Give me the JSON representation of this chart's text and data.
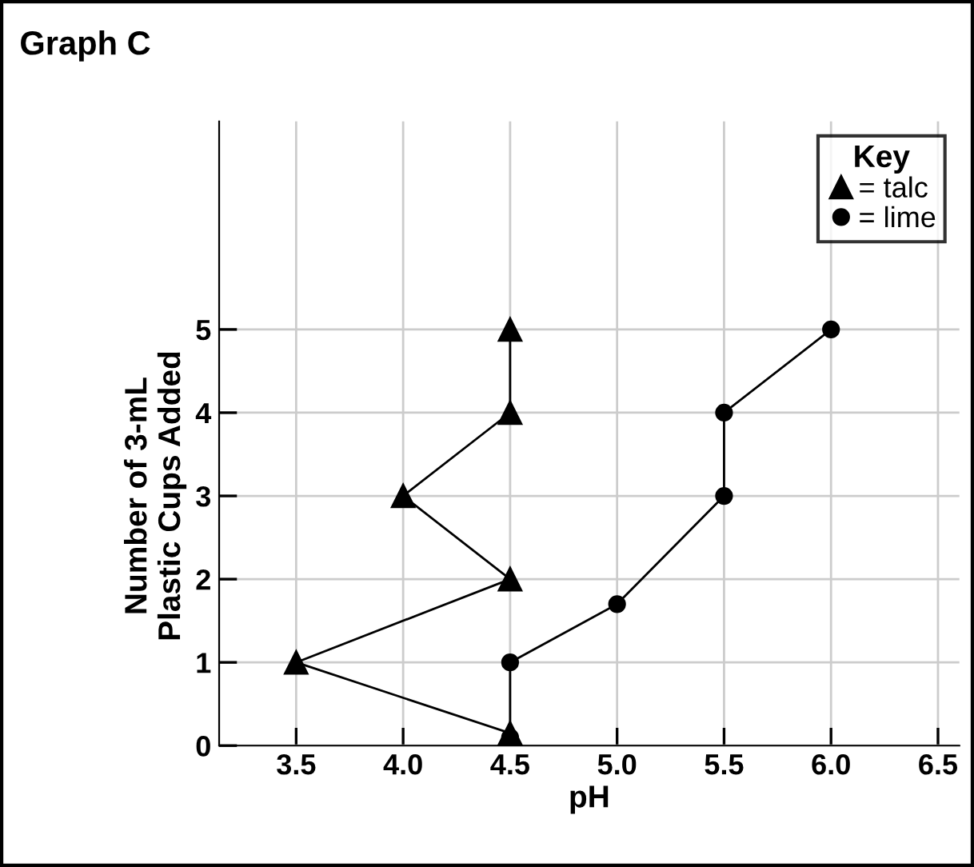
{
  "chart_data": {
    "type": "line",
    "title": "Graph C",
    "xlabel": "pH",
    "ylabel": "Number of 3-mL\nPlastic Cups Added",
    "legend_title": "Key",
    "series": [
      {
        "name": "= talc",
        "color": "#000000",
        "marker": "triangle",
        "x": [
          4.5,
          3.5,
          4.5,
          4.0,
          4.5,
          4.5
        ],
        "values": [
          0.15,
          1.0,
          2.0,
          3.0,
          4.0,
          5.0
        ]
      },
      {
        "name": "= lime",
        "color": "#000000",
        "marker": "circle",
        "x": [
          4.5,
          4.5,
          5.0,
          5.5,
          5.5,
          6.0
        ],
        "values": [
          0.1,
          1.0,
          1.7,
          3.0,
          4.0,
          5.0
        ]
      }
    ],
    "xlim": [
      3.14,
      6.6
    ],
    "ylim": [
      0,
      7.5
    ],
    "xticks": [
      3.5,
      {
        "value": 4,
        "label": "4.0"
      },
      4.5,
      {
        "value": 5,
        "label": "5.0"
      },
      5.5,
      {
        "value": 6,
        "label": "6.0"
      },
      6.5
    ],
    "yticks": [
      0,
      1,
      2,
      3,
      4,
      5
    ],
    "grid": true,
    "legend": "top right",
    "line_style": "solid"
  }
}
